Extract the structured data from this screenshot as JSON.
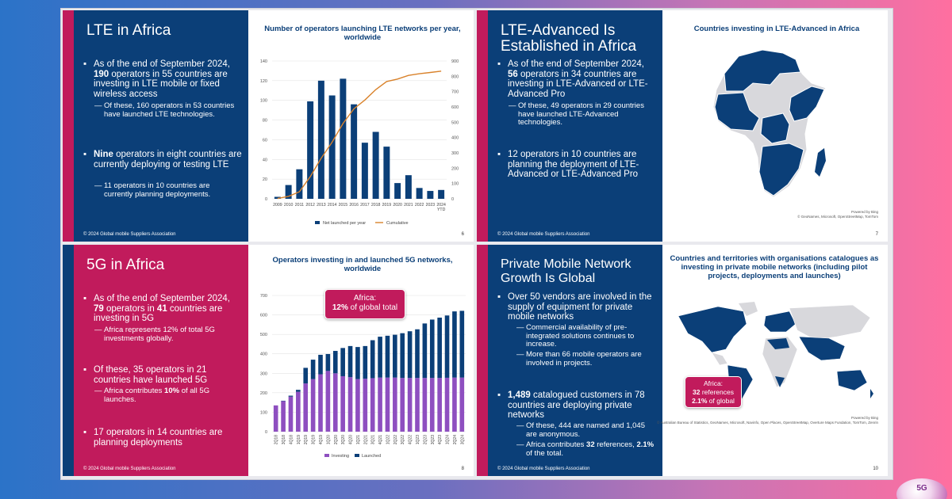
{
  "slides": [
    {
      "title": "LTE in Africa",
      "bullets": [
        {
          "pre": "As of the end of September 2024, ",
          "b1": "190",
          "mid": " operators in 55 countries are investing in LTE mobile or fixed wireless access",
          "subs": [
            "Of these, 160 operators in 53 countries have launched LTE technologies."
          ]
        },
        {
          "b1": "Nine",
          "mid": " operators in eight countries are currently deploying or testing LTE",
          "subs": [
            "11 operators in 10 countries are currently planning deployments."
          ]
        }
      ],
      "copyright": "© 2024 Global mobile Suppliers Association",
      "page": "6"
    },
    {
      "title": "LTE-Advanced Is Established in Africa",
      "bullets": [
        {
          "pre": "As of the end of September 2024, ",
          "b1": "56",
          "mid": " operators in 34 countries are investing in LTE-Advanced or LTE-Advanced Pro",
          "subs": [
            "Of these, 49 operators in 29 countries have launched LTE-Advanced technologies."
          ]
        },
        {
          "mid": "12 operators in 10 countries are planning the deployment of LTE-Advanced or LTE-Advanced Pro",
          "subs": []
        }
      ],
      "map_title": "Countries investing in LTE-Advanced in Africa",
      "powered": "Powered by Bing",
      "credits": "© GeoNames, Microsoft, OpenStreetMap, TomTom",
      "copyright": "© 2024 Global mobile Suppliers Association",
      "page": "7"
    },
    {
      "title": "5G in Africa",
      "bullets": [
        {
          "pre": "As of the end of September 2024, ",
          "b1": "79",
          "mid": " operators in ",
          "b2": "41",
          "post": " countries are investing in 5G",
          "subs": [
            "Africa represents 12% of total 5G investments globally."
          ]
        },
        {
          "mid": "Of these, 35 operators in 21 countries have launched 5G",
          "subs_rich": [
            {
              "pre": "Africa contributes ",
              "b": "10%",
              "post": " of all 5G launches."
            }
          ]
        },
        {
          "mid": "17 operators in 14 countries are planning deployments",
          "subs": []
        }
      ],
      "callout": {
        "line1": "Africa:",
        "bold": "12%",
        "line2": " of global total"
      },
      "copyright": "© 2024 Global mobile Suppliers Association",
      "page": "8"
    },
    {
      "title": "Private Mobile Network Growth Is Global",
      "bullets": [
        {
          "mid": "Over 50 vendors are involved in the supply of equipment for private mobile networks",
          "subs": [
            "Commercial availability of pre-integrated solutions continues to increase.",
            "More than 66 mobile operators are involved in projects."
          ]
        },
        {
          "b1": "1,489",
          "mid": " catalogued customers in 78 countries are deploying private networks",
          "subs": [
            "Of these, 444 are named and 1,045 are anonymous."
          ],
          "subs_rich": [
            {
              "pre": "Africa contributes ",
              "b": "32",
              "post": " references, ",
              "b2": "2.1%",
              "post2": " of the total."
            }
          ]
        }
      ],
      "map_title": "Countries and territories with organisations catalogues as investing in private mobile networks (including pilot projects, deployments and launches)",
      "callout": {
        "line1": "Africa:",
        "bold1": "32",
        "mid": " references",
        "bold2": "2.1%",
        "post": " of global"
      },
      "powered": "Powered by Bing",
      "credits": "© Australian Bureau of Statistics, GeoNames, Microsoft, Navinfo, Open Places, OpenStreetMap, Overture Maps Fundation, TomTom, Zenrin",
      "copyright": "© 2024 Global mobile Suppliers Association",
      "page": "10"
    }
  ],
  "logo_text": "5G",
  "chart_data": [
    {
      "type": "bar",
      "title": "Number of operators launching LTE networks per year, worldwide",
      "categories": [
        "2009",
        "2010",
        "2011",
        "2012",
        "2013",
        "2014",
        "2015",
        "2016",
        "2017",
        "2018",
        "2019",
        "2020",
        "2021",
        "2022",
        "2023",
        "2024 YTD"
      ],
      "series": [
        {
          "name": "Net launched per year",
          "type": "bar",
          "axis": "left",
          "color": "#0b3f78",
          "values": [
            2,
            14,
            30,
            99,
            120,
            105,
            122,
            96,
            57,
            68,
            53,
            16,
            24,
            11,
            8,
            9
          ]
        },
        {
          "name": "Cumulative",
          "type": "line",
          "axis": "right",
          "color": "#d9822b",
          "values": [
            2,
            16,
            46,
            145,
            265,
            370,
            492,
            588,
            645,
            713,
            766,
            782,
            806,
            817,
            825,
            834
          ]
        }
      ],
      "ylim_left": [
        0,
        140
      ],
      "yticks_left": [
        0,
        20,
        40,
        60,
        80,
        100,
        120,
        140
      ],
      "ylim_right": [
        0,
        900
      ],
      "yticks_right": [
        0,
        100,
        200,
        300,
        400,
        500,
        600,
        700,
        800,
        900
      ],
      "legend": "bottom"
    },
    {
      "type": "bar",
      "stacked": true,
      "title": "Operators investing in and launched 5G networks, worldwide",
      "categories": [
        "2Q18",
        "3Q18",
        "4Q18",
        "1Q19",
        "2Q19",
        "3Q19",
        "4Q19",
        "1Q20",
        "2Q20",
        "3Q20",
        "4Q20",
        "1Q21",
        "2Q21",
        "3Q21",
        "4Q21",
        "1Q22",
        "2Q22",
        "3Q22",
        "4Q22",
        "1Q23",
        "2Q23",
        "3Q23",
        "4Q23",
        "1Q24",
        "2Q24",
        "3Q24"
      ],
      "series": [
        {
          "name": "Investing",
          "color": "#8e4fc0",
          "values": [
            135,
            157,
            180,
            205,
            248,
            270,
            295,
            312,
            300,
            285,
            280,
            270,
            272,
            275,
            278,
            278,
            278,
            276,
            276,
            276,
            276,
            276,
            276,
            277,
            278,
            278
          ]
        },
        {
          "name": "Launched",
          "color": "#0b3f78",
          "values": [
            0,
            2,
            5,
            10,
            80,
            100,
            100,
            87,
            115,
            145,
            160,
            165,
            168,
            195,
            210,
            215,
            220,
            230,
            240,
            250,
            280,
            300,
            310,
            320,
            340,
            343
          ]
        }
      ],
      "ylim": [
        0,
        700
      ],
      "yticks": [
        0,
        100,
        200,
        300,
        400,
        500,
        600,
        700
      ],
      "legend": "bottom"
    }
  ]
}
